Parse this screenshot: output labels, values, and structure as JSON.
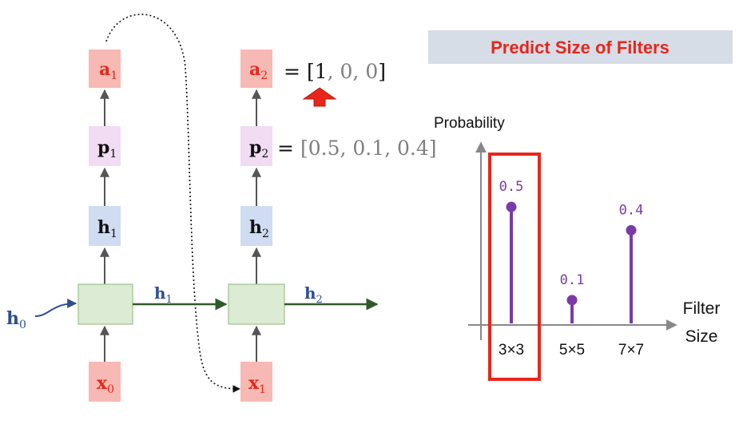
{
  "rnn": {
    "step1": {
      "x": {
        "base": "x",
        "sub": "0"
      },
      "h": {
        "base": "h",
        "sub": "1"
      },
      "p": {
        "base": "p",
        "sub": "1"
      },
      "a": {
        "base": "a",
        "sub": "1"
      },
      "out_label": {
        "base": "h",
        "sub": "1"
      }
    },
    "step2": {
      "x": {
        "base": "x",
        "sub": "1"
      },
      "h": {
        "base": "h",
        "sub": "2"
      },
      "p": {
        "base": "p",
        "sub": "2"
      },
      "a": {
        "base": "a",
        "sub": "2"
      },
      "out_label": {
        "base": "h",
        "sub": "2"
      }
    },
    "h0": {
      "base": "h",
      "sub": "0"
    },
    "a2_equation": {
      "eq": "=",
      "open": "[",
      "first": "1",
      "rest": ", 0, 0",
      "close": "]"
    },
    "p2_equation": {
      "eq": "=",
      "open": "[",
      "values": "0.5, 0.1, 0.4",
      "close": "]"
    }
  },
  "chart_title": "Predict Size of Filters",
  "colors": {
    "red": "#e8261a",
    "red_box_fill": "#f7b9b3",
    "pink_box_fill": "#f1dcf3",
    "blue_box_fill": "#cfdcf1",
    "green_box_fill": "#dcebd3",
    "green_box_stroke": "#9dc38d",
    "green_arrow": "#2f5a29",
    "blue_text": "#2d4e92",
    "purple": "#7a3ba8",
    "gray_text": "#7f7f7f",
    "banner": "#d7dde6",
    "banner_text": "#e8261a"
  },
  "chart_data": {
    "type": "stem",
    "title": "Predict Size of Filters",
    "ylabel": "Probability",
    "xlabel": "Filter Size",
    "categories": [
      "3×3",
      "5×5",
      "7×7"
    ],
    "values": [
      0.5,
      0.1,
      0.4
    ],
    "value_labels": [
      "0.5",
      "0.1",
      "0.4"
    ],
    "highlighted_category": "3×3",
    "ylim": [
      0,
      0.6
    ]
  }
}
